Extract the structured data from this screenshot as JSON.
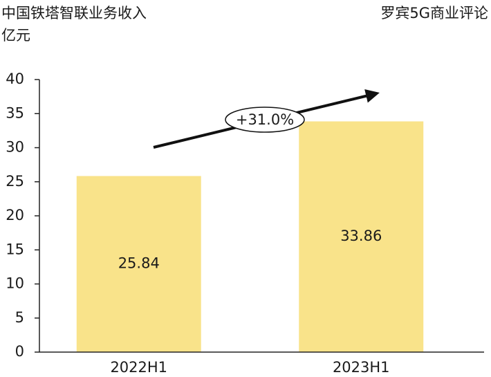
{
  "chart_data": {
    "type": "bar",
    "title": "中国铁塔智联业务收入",
    "y_label": "亿元",
    "source": "罗宾5G商业评论",
    "annotation": "+31.0%",
    "categories": [
      "2022H1",
      "2023H1"
    ],
    "values": [
      25.84,
      33.86
    ],
    "color": "#f9e38a",
    "ylim": [
      0,
      40
    ],
    "yticks": [
      0,
      5,
      10,
      15,
      20,
      25,
      30,
      35,
      40
    ]
  }
}
